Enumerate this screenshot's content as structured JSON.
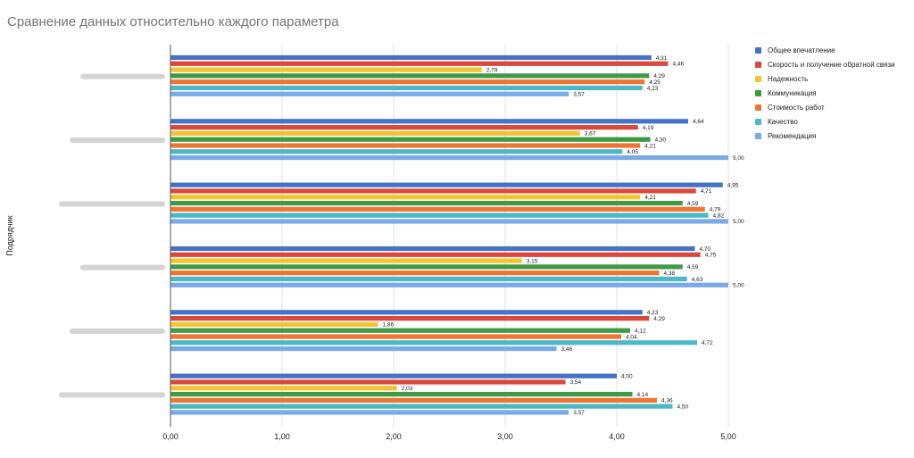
{
  "title": "Сравнение данных относительно каждого параметра",
  "chart_data": {
    "type": "bar",
    "orientation": "horizontal",
    "title": "Сравнение данных относительно каждого параметра",
    "xlabel": "",
    "ylabel": "Подрядчик",
    "xlim": [
      0,
      5
    ],
    "xticks": [
      "0,00",
      "1,00",
      "2,00",
      "3,00",
      "4,00",
      "5,00"
    ],
    "grid": true,
    "legend_position": "right",
    "categories": [
      "",
      "",
      "",
      "",
      "",
      ""
    ],
    "series": [
      {
        "name": "Общее впечатление",
        "color": "#4472c4",
        "values": [
          4.31,
          4.64,
          4.95,
          4.7,
          4.23,
          4.0
        ],
        "labels": [
          "4,31",
          "4,64",
          "4,95",
          "4,70",
          "4,23",
          "4,00"
        ]
      },
      {
        "name": "Скорость и получение обратной связи",
        "color": "#d9483b",
        "values": [
          4.46,
          4.19,
          4.71,
          4.75,
          4.29,
          3.54
        ],
        "labels": [
          "4,46",
          "4,19",
          "4,71",
          "4,75",
          "4,29",
          "3,54"
        ]
      },
      {
        "name": "Надежность",
        "color": "#f4c430",
        "values": [
          2.79,
          3.67,
          4.21,
          3.15,
          1.86,
          2.03
        ],
        "labels": [
          "2,79",
          "3,67",
          "4,21",
          "3,15",
          "1,86",
          "2,03"
        ]
      },
      {
        "name": "Коммуникация",
        "color": "#3f9a45",
        "values": [
          4.29,
          4.3,
          4.59,
          4.59,
          4.12,
          4.14
        ],
        "labels": [
          "4,29",
          "4,30",
          "4,59",
          "4,59",
          "4,12",
          "4,14"
        ]
      },
      {
        "name": "Стоимость работ",
        "color": "#ef7434",
        "values": [
          4.25,
          4.21,
          4.79,
          4.38,
          4.04,
          4.36
        ],
        "labels": [
          "4,25",
          "4,21",
          "4,79",
          "4,38",
          "4,04",
          "4,36"
        ]
      },
      {
        "name": "Качество",
        "color": "#4bb8c4",
        "values": [
          4.23,
          4.05,
          4.82,
          4.63,
          4.72,
          4.5
        ],
        "labels": [
          "4,23",
          "4,05",
          "4,82",
          "4,63",
          "4,72",
          "4,50"
        ]
      },
      {
        "name": "Рекомендация",
        "color": "#7baae8",
        "values": [
          3.57,
          5.0,
          5.0,
          5.0,
          3.46,
          3.57
        ],
        "labels": [
          "3,57",
          "5,00",
          "5,00",
          "5,00",
          "3,46",
          "3,57"
        ]
      }
    ]
  }
}
